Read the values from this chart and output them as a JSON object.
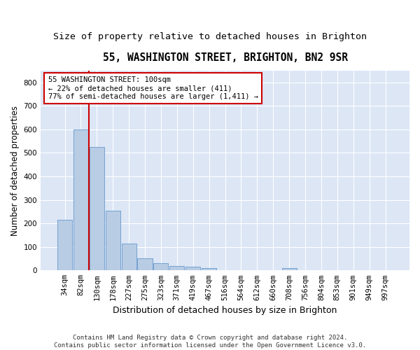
{
  "title": "55, WASHINGTON STREET, BRIGHTON, BN2 9SR",
  "subtitle": "Size of property relative to detached houses in Brighton",
  "xlabel": "Distribution of detached houses by size in Brighton",
  "ylabel": "Number of detached properties",
  "categories": [
    "34sqm",
    "82sqm",
    "130sqm",
    "178sqm",
    "227sqm",
    "275sqm",
    "323sqm",
    "371sqm",
    "419sqm",
    "467sqm",
    "516sqm",
    "564sqm",
    "612sqm",
    "660sqm",
    "708sqm",
    "756sqm",
    "804sqm",
    "853sqm",
    "901sqm",
    "949sqm",
    "997sqm"
  ],
  "values": [
    215,
    600,
    525,
    255,
    115,
    53,
    32,
    20,
    17,
    10,
    0,
    0,
    0,
    0,
    10,
    0,
    0,
    0,
    0,
    0,
    0
  ],
  "bar_color": "#b8cce4",
  "bar_edge_color": "#6699cc",
  "background_color": "#dce6f5",
  "grid_color": "#ffffff",
  "property_line_x": 1.5,
  "property_line_color": "#cc0000",
  "annotation_box_text": "55 WASHINGTON STREET: 100sqm\n← 22% of detached houses are smaller (411)\n77% of semi-detached houses are larger (1,411) →",
  "annotation_box_color": "#cc0000",
  "ylim": [
    0,
    850
  ],
  "yticks": [
    0,
    100,
    200,
    300,
    400,
    500,
    600,
    700,
    800
  ],
  "footer_line1": "Contains HM Land Registry data © Crown copyright and database right 2024.",
  "footer_line2": "Contains public sector information licensed under the Open Government Licence v3.0.",
  "title_fontsize": 10.5,
  "subtitle_fontsize": 9.5,
  "xlabel_fontsize": 9,
  "ylabel_fontsize": 8.5,
  "tick_fontsize": 7.5,
  "footer_fontsize": 6.5,
  "fig_bg": "#ffffff"
}
